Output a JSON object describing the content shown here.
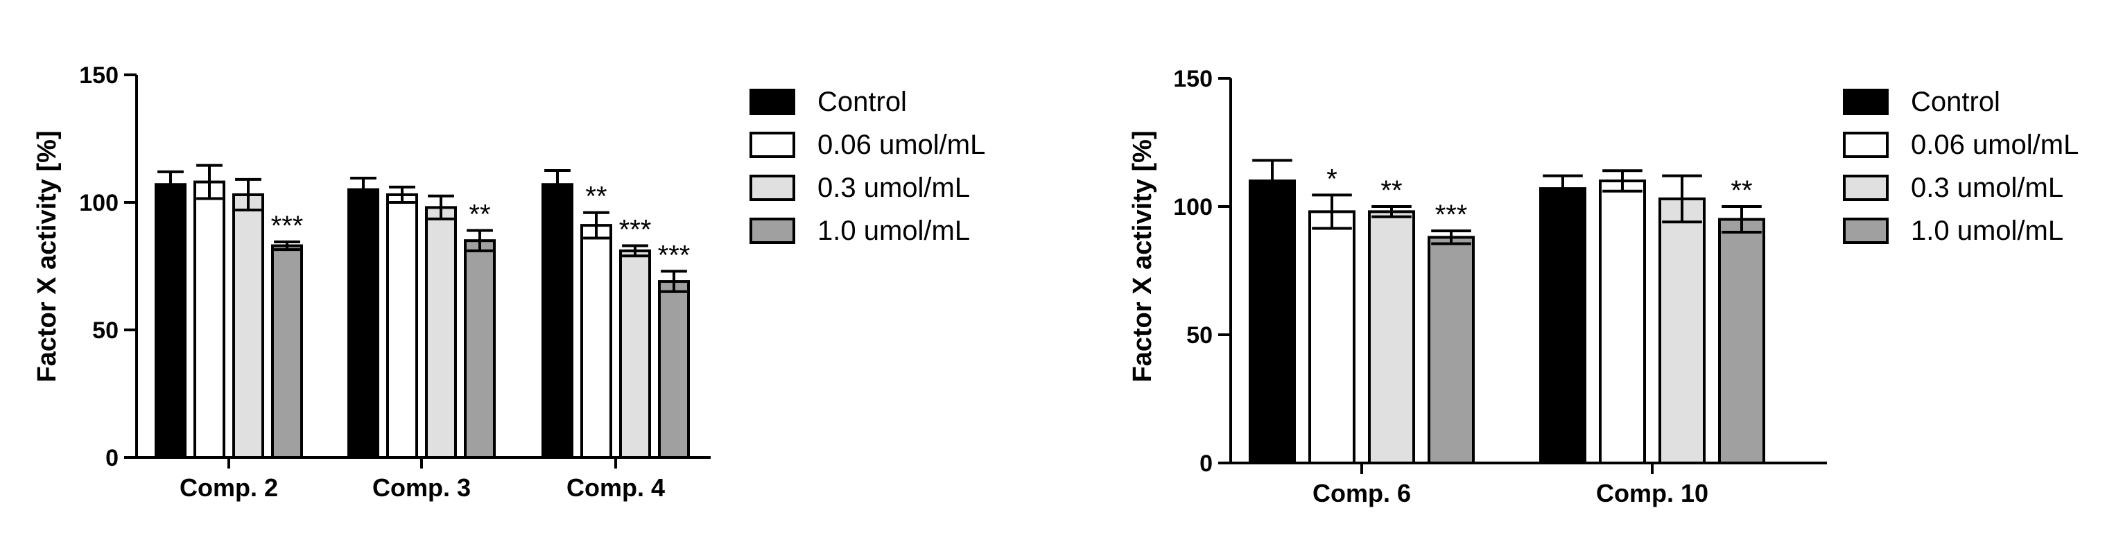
{
  "chart_data": [
    {
      "type": "bar",
      "ylabel": "Factor X activity [%]",
      "ylim": [
        0,
        150
      ],
      "yticks": [
        0,
        50,
        100,
        150
      ],
      "categories": [
        "Comp. 2",
        "Comp. 3",
        "Comp. 4"
      ],
      "series": [
        {
          "name": "Control",
          "values": [
            107,
            105,
            107
          ],
          "errors": [
            5,
            4.5,
            5.5
          ],
          "stars": [
            "",
            "",
            ""
          ]
        },
        {
          "name": "0.06 umol/mL",
          "values": [
            108,
            103,
            91
          ],
          "errors": [
            6.5,
            3,
            5
          ],
          "stars": [
            "",
            "",
            "**"
          ]
        },
        {
          "name": "0.3 umol/mL",
          "values": [
            103,
            98,
            81
          ],
          "errors": [
            6,
            4.5,
            2
          ],
          "stars": [
            "",
            "",
            "***"
          ]
        },
        {
          "name": "1.0 umol/mL",
          "values": [
            83,
            85,
            69
          ],
          "errors": [
            1.5,
            4,
            4
          ],
          "stars": [
            "***",
            "**",
            "***"
          ]
        }
      ],
      "legend": "right",
      "grid": false
    },
    {
      "type": "bar",
      "ylabel": "Factor X activity [%]",
      "ylim": [
        0,
        150
      ],
      "yticks": [
        0,
        50,
        100,
        150
      ],
      "categories": [
        "Comp. 6",
        "Comp. 10"
      ],
      "series": [
        {
          "name": "Control",
          "values": [
            110,
            107
          ],
          "errors": [
            8,
            5
          ],
          "stars": [
            "",
            ""
          ]
        },
        {
          "name": "0.06 umol/mL",
          "values": [
            98,
            110
          ],
          "errors": [
            6.5,
            4
          ],
          "stars": [
            "*",
            ""
          ]
        },
        {
          "name": "0.3 umol/mL",
          "values": [
            98,
            103
          ],
          "errors": [
            2,
            9
          ],
          "stars": [
            "**",
            ""
          ]
        },
        {
          "name": "1.0 umol/mL",
          "values": [
            88,
            95
          ],
          "errors": [
            2.5,
            5
          ],
          "stars": [
            "***",
            "**"
          ]
        }
      ],
      "legend": "right",
      "grid": false
    }
  ],
  "colors": {
    "Control": "#000000",
    "0.06 umol/mL": "#ffffff",
    "0.3 umol/mL": "#e0e0e0",
    "1.0 umol/mL": "#a0a0a0"
  }
}
